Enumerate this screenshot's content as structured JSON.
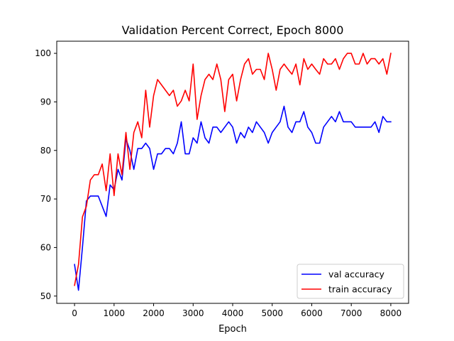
{
  "chart_data": {
    "type": "line",
    "title": "Validation Percent Correct, Epoch 8000",
    "xlabel": "Epoch",
    "ylabel": "",
    "xlim": [
      -450,
      8450
    ],
    "ylim": [
      48.5,
      102.5
    ],
    "xticks": [
      0,
      1000,
      2000,
      3000,
      4000,
      5000,
      6000,
      7000,
      8000
    ],
    "yticks": [
      50,
      60,
      70,
      80,
      90,
      100
    ],
    "grid": false,
    "legend_position": "lower-right",
    "x": [
      0,
      100,
      200,
      300,
      400,
      500,
      600,
      700,
      800,
      900,
      1000,
      1100,
      1200,
      1300,
      1400,
      1500,
      1600,
      1700,
      1800,
      1900,
      2000,
      2100,
      2200,
      2300,
      2400,
      2500,
      2600,
      2700,
      2800,
      2900,
      3000,
      3100,
      3200,
      3300,
      3400,
      3500,
      3600,
      3700,
      3800,
      3900,
      4000,
      4100,
      4200,
      4300,
      4400,
      4500,
      4600,
      4700,
      4800,
      4900,
      5000,
      5100,
      5200,
      5300,
      5400,
      5500,
      5600,
      5700,
      5800,
      5900,
      6000,
      6100,
      6200,
      6300,
      6400,
      6500,
      6600,
      6700,
      6800,
      6900,
      7000,
      7100,
      7200,
      7300,
      7400,
      7500,
      7600,
      7700,
      7800,
      7900,
      8000
    ],
    "series": [
      {
        "name": "val accuracy",
        "color": "#0000ff",
        "values": [
          56.5,
          51.2,
          60,
          69.6,
          70.6,
          70.6,
          70.6,
          68.5,
          66.4,
          72.9,
          71.9,
          76.1,
          73.9,
          82.4,
          80,
          76.1,
          80.4,
          80.4,
          81.5,
          80.4,
          76.1,
          79.3,
          79.3,
          80.4,
          80.4,
          79.3,
          81.5,
          85.9,
          79.3,
          79.3,
          82.6,
          81.5,
          85.9,
          82.6,
          81.5,
          84.8,
          84.8,
          83.7,
          84.8,
          85.9,
          84.8,
          81.5,
          83.7,
          82.6,
          84.8,
          83.7,
          85.9,
          84.8,
          83.7,
          81.5,
          83.7,
          84.8,
          85.9,
          89.1,
          84.8,
          83.7,
          85.9,
          85.9,
          88,
          84.8,
          83.7,
          81.5,
          81.5,
          84.8,
          85.9,
          87,
          85.9,
          88,
          85.9,
          85.9,
          85.9,
          84.8,
          84.8,
          84.8,
          84.8,
          84.8,
          85.9,
          83.7,
          87,
          85.9,
          85.9
        ]
      },
      {
        "name": "train accuracy",
        "color": "#ff0000",
        "values": [
          52.2,
          56.5,
          66.3,
          68.5,
          73.9,
          75,
          75,
          77.2,
          71.7,
          79.3,
          70.7,
          79.3,
          75,
          83.7,
          76.1,
          83.7,
          85.9,
          82.6,
          92.4,
          84.8,
          91.3,
          94.6,
          93.5,
          92.4,
          91.3,
          92.4,
          89.1,
          90.2,
          92.4,
          90.2,
          97.8,
          86.4,
          91.3,
          94.6,
          95.7,
          94.6,
          97.8,
          94.6,
          88,
          94.6,
          95.7,
          90.2,
          94.6,
          97.8,
          98.9,
          95.7,
          96.7,
          96.7,
          94.6,
          100,
          96.7,
          92.4,
          96.7,
          97.8,
          96.7,
          95.7,
          97.8,
          93.5,
          98.9,
          96.7,
          97.8,
          96.7,
          95.7,
          98.9,
          97.8,
          97.8,
          98.9,
          96.7,
          98.9,
          100,
          100,
          97.8,
          97.8,
          100,
          97.8,
          98.9,
          98.9,
          97.8,
          98.9,
          95.7,
          100
        ]
      }
    ]
  }
}
